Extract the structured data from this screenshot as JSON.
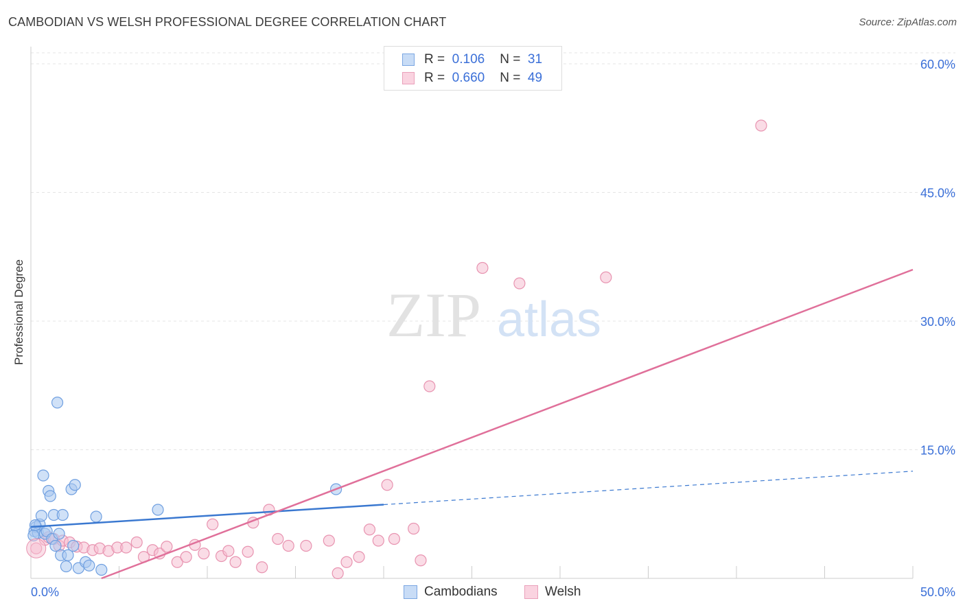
{
  "title": "CAMBODIAN VS WELSH PROFESSIONAL DEGREE CORRELATION CHART",
  "source": "Source: ZipAtlas.com",
  "watermark": {
    "zip": "ZIP",
    "atlas": "atlas"
  },
  "colors": {
    "cambodian_fill": "#a9c8f0",
    "cambodian_stroke": "#6f9fe0",
    "cambodian_line": "#3a78d0",
    "welsh_fill": "#f6bfd1",
    "welsh_stroke": "#e893b0",
    "welsh_line": "#e0709a",
    "axis_value": "#3a6fd8",
    "grid": "#e4e4e4"
  },
  "legend": {
    "rows": [
      {
        "r_label": "R =",
        "r_value": "0.106",
        "n_label": "N =",
        "n_value": "31"
      },
      {
        "r_label": "R =",
        "r_value": "0.660",
        "n_label": "N =",
        "n_value": "49"
      }
    ]
  },
  "chart_data": {
    "type": "scatter",
    "title": "CAMBODIAN VS WELSH PROFESSIONAL DEGREE CORRELATION CHART",
    "xlabel": "",
    "ylabel": "Professional Degree",
    "xlim": [
      0,
      50
    ],
    "ylim": [
      0,
      62
    ],
    "x_tick_labels": [
      "0.0%",
      "50.0%"
    ],
    "y_ticks": [
      15,
      30,
      45,
      60
    ],
    "y_tick_labels": [
      "15.0%",
      "30.0%",
      "45.0%",
      "60.0%"
    ],
    "grid": true,
    "legend_placement": "top-center",
    "series": [
      {
        "name": "Cambodians",
        "r": 0.106,
        "n": 31,
        "points": [
          [
            0.2,
            5.5
          ],
          [
            0.3,
            6.0
          ],
          [
            0.4,
            5.3
          ],
          [
            0.5,
            6.3
          ],
          [
            0.6,
            7.3
          ],
          [
            0.7,
            12.0
          ],
          [
            0.8,
            5.2
          ],
          [
            0.9,
            5.5
          ],
          [
            1.0,
            10.2
          ],
          [
            1.1,
            9.6
          ],
          [
            1.2,
            4.6
          ],
          [
            1.3,
            7.4
          ],
          [
            1.4,
            3.8
          ],
          [
            1.5,
            20.5
          ],
          [
            1.6,
            5.2
          ],
          [
            1.7,
            2.7
          ],
          [
            1.8,
            7.4
          ],
          [
            2.0,
            1.4
          ],
          [
            2.1,
            2.7
          ],
          [
            2.3,
            10.4
          ],
          [
            2.4,
            3.8
          ],
          [
            2.5,
            10.9
          ],
          [
            2.7,
            1.2
          ],
          [
            3.1,
            1.9
          ],
          [
            3.3,
            1.5
          ],
          [
            3.7,
            7.2
          ],
          [
            4.0,
            1.0
          ],
          [
            7.2,
            8.0
          ],
          [
            17.3,
            10.4
          ],
          [
            0.15,
            5.0
          ],
          [
            0.25,
            6.2
          ]
        ],
        "trend": {
          "x": [
            0,
            20
          ],
          "y": [
            6.0,
            8.6
          ]
        },
        "trend_dashed": {
          "x": [
            20,
            50
          ],
          "y": [
            8.6,
            12.5
          ]
        }
      },
      {
        "name": "Welsh",
        "r": 0.66,
        "n": 49,
        "points": [
          [
            0.3,
            3.5
          ],
          [
            0.8,
            4.5
          ],
          [
            1.0,
            4.8
          ],
          [
            1.3,
            4.6
          ],
          [
            1.6,
            3.8
          ],
          [
            1.8,
            4.4
          ],
          [
            2.2,
            4.2
          ],
          [
            2.6,
            3.7
          ],
          [
            3.0,
            3.6
          ],
          [
            3.5,
            3.3
          ],
          [
            3.9,
            3.5
          ],
          [
            4.4,
            3.2
          ],
          [
            4.9,
            3.6
          ],
          [
            5.4,
            3.6
          ],
          [
            6.0,
            4.2
          ],
          [
            6.4,
            2.5
          ],
          [
            6.9,
            3.3
          ],
          [
            7.3,
            2.9
          ],
          [
            7.7,
            3.7
          ],
          [
            8.3,
            1.9
          ],
          [
            8.8,
            2.5
          ],
          [
            9.3,
            3.9
          ],
          [
            9.8,
            2.9
          ],
          [
            10.3,
            6.3
          ],
          [
            10.8,
            2.6
          ],
          [
            11.2,
            3.2
          ],
          [
            11.6,
            1.9
          ],
          [
            12.3,
            3.1
          ],
          [
            12.6,
            6.5
          ],
          [
            13.1,
            1.3
          ],
          [
            13.5,
            8.0
          ],
          [
            14.0,
            4.6
          ],
          [
            14.6,
            3.8
          ],
          [
            15.6,
            3.8
          ],
          [
            16.9,
            4.4
          ],
          [
            17.4,
            0.6
          ],
          [
            17.9,
            1.9
          ],
          [
            18.6,
            2.5
          ],
          [
            19.2,
            5.7
          ],
          [
            19.7,
            4.4
          ],
          [
            20.2,
            10.9
          ],
          [
            20.6,
            4.6
          ],
          [
            21.7,
            5.8
          ],
          [
            22.1,
            2.1
          ],
          [
            22.6,
            22.4
          ],
          [
            25.6,
            36.2
          ],
          [
            27.7,
            34.4
          ],
          [
            32.6,
            35.1
          ],
          [
            41.4,
            52.8
          ]
        ],
        "trend": {
          "x": [
            4.0,
            50
          ],
          "y": [
            0.0,
            36.0
          ]
        }
      }
    ]
  },
  "bottom_legend": [
    {
      "label": "Cambodians"
    },
    {
      "label": "Welsh"
    }
  ]
}
